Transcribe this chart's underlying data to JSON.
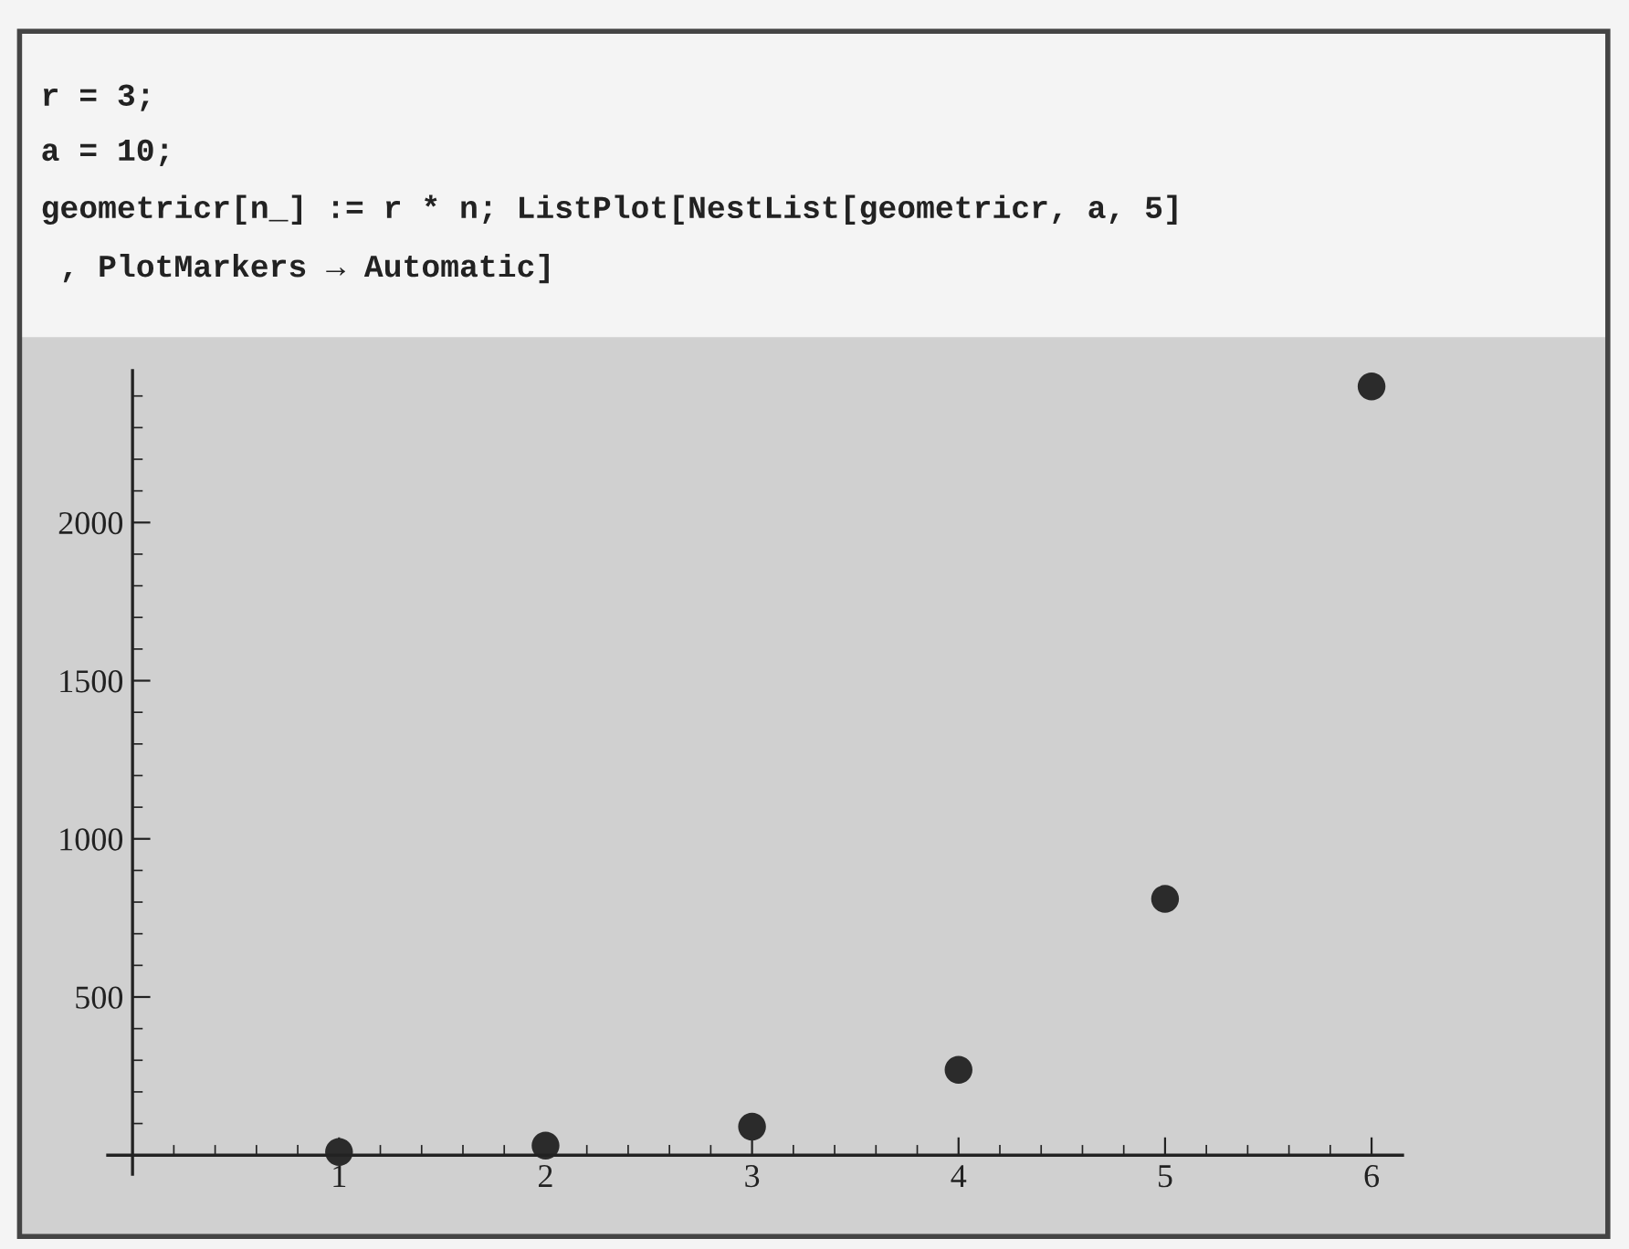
{
  "chart_data": {
    "type": "scatter",
    "annotations": [
      "r = 3;",
      "a = 10;",
      "geometricr[n_] := r * n; ListPlot[NestList[geometricr, a, 5]",
      " , PlotMarkers → Automatic]"
    ],
    "x": [
      1,
      2,
      3,
      4,
      5,
      6
    ],
    "series": [
      {
        "color": "#2b2b2b",
        "values": [
          10,
          30,
          90,
          270,
          810,
          2430
        ]
      }
    ],
    "xlim": [
      -0.12,
      6.15
    ],
    "ylim": [
      -60,
      2480
    ],
    "xticks": [
      1,
      2,
      3,
      4,
      5,
      6
    ],
    "yticks": [
      500,
      1000,
      1500,
      2000
    ],
    "marker": "circle"
  }
}
